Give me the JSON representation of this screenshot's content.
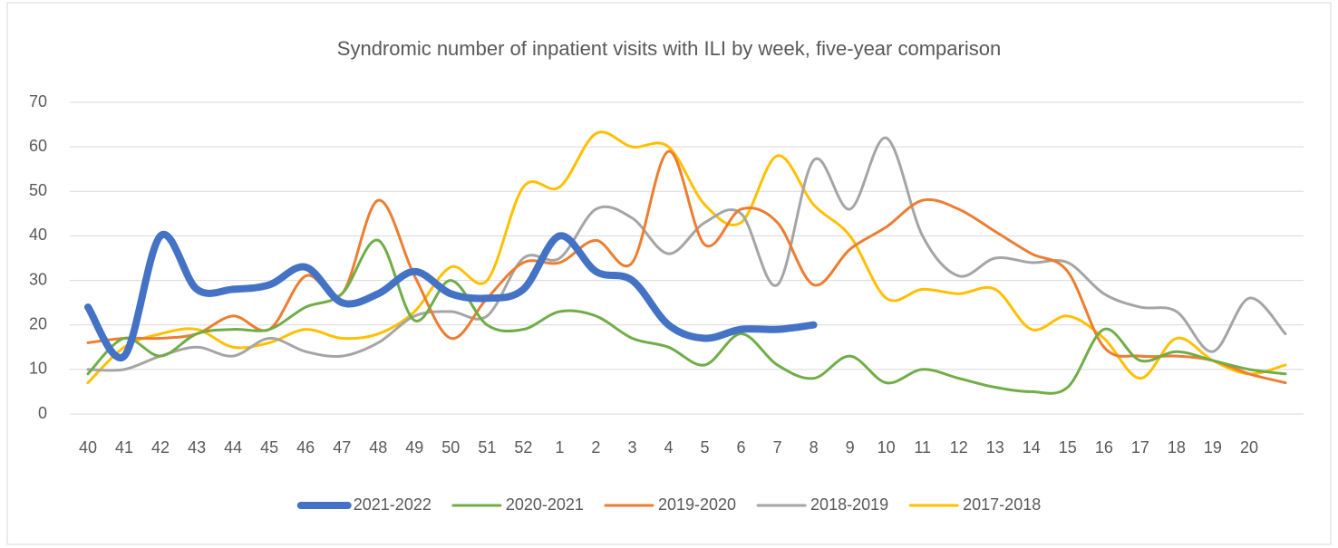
{
  "chart_data": {
    "type": "line",
    "title": "Syndromic number of inpatient visits with ILI by week, five-year comparison",
    "categories": [
      "40",
      "41",
      "42",
      "43",
      "44",
      "45",
      "46",
      "47",
      "48",
      "49",
      "50",
      "51",
      "52",
      "1",
      "2",
      "3",
      "4",
      "5",
      "6",
      "7",
      "8",
      "9",
      "10",
      "11",
      "12",
      "13",
      "14",
      "15",
      "16",
      "17",
      "18",
      "19",
      "20",
      null
    ],
    "ylim": [
      0,
      70
    ],
    "yticks": [
      0,
      10,
      20,
      30,
      40,
      50,
      60,
      70
    ],
    "grid": true,
    "legend": "bottom",
    "series": [
      {
        "name": "2021-2022",
        "color": "#4472c4",
        "width": 8,
        "values": [
          24,
          13,
          40,
          28,
          28,
          29,
          33,
          25,
          27,
          32,
          27,
          26,
          28,
          40,
          32,
          30,
          20,
          17,
          19,
          19,
          20,
          null,
          null,
          null,
          null,
          null,
          null,
          null,
          null,
          null,
          null,
          null,
          null,
          null
        ]
      },
      {
        "name": "2020-2021",
        "color": "#70ad47",
        "width": 3,
        "values": [
          9,
          17,
          13,
          18,
          19,
          19,
          24,
          27,
          39,
          21,
          30,
          20,
          19,
          23,
          22,
          17,
          15,
          11,
          18,
          11,
          8,
          13,
          7,
          10,
          8,
          6,
          5,
          6,
          19,
          12,
          14,
          12,
          10,
          9
        ]
      },
      {
        "name": "2019-2020",
        "color": "#ed7d31",
        "width": 3,
        "values": [
          16,
          17,
          17,
          18,
          22,
          19,
          31,
          27,
          48,
          31,
          17,
          26,
          34,
          34,
          39,
          34,
          59,
          38,
          46,
          43,
          29,
          37,
          42,
          48,
          46,
          41,
          36,
          32,
          15,
          13,
          13,
          12,
          9,
          7
        ]
      },
      {
        "name": "2018-2019",
        "color": "#a5a5a5",
        "width": 3,
        "values": [
          10,
          10,
          13,
          15,
          13,
          17,
          14,
          13,
          16,
          22,
          23,
          22,
          35,
          35,
          46,
          44,
          36,
          43,
          45,
          29,
          57,
          46,
          62,
          40,
          31,
          35,
          34,
          34,
          27,
          24,
          23,
          14,
          26,
          18
        ]
      },
      {
        "name": "2017-2018",
        "color": "#ffc000",
        "width": 3,
        "values": [
          7,
          15,
          18,
          19,
          15,
          16,
          19,
          17,
          18,
          23,
          33,
          30,
          51,
          51,
          63,
          60,
          60,
          47,
          43,
          58,
          47,
          40,
          26,
          28,
          27,
          28,
          19,
          22,
          17,
          8,
          17,
          12,
          9,
          11
        ]
      }
    ]
  }
}
